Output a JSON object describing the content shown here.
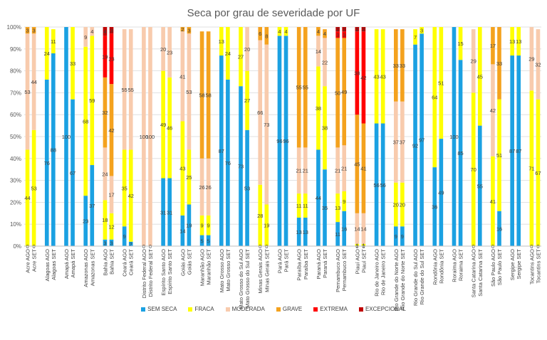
{
  "chart_data": {
    "type": "bar",
    "stacked": true,
    "title": "Seca por grau de severidade por UF",
    "ylim": [
      0,
      100
    ],
    "yticks": [
      "0%",
      "10%",
      "20%",
      "30%",
      "40%",
      "50%",
      "60%",
      "70%",
      "80%",
      "90%",
      "100%"
    ],
    "categories": [
      "Acre AGO",
      "Acre SET",
      "",
      "Alagoas AGO",
      "Alagoas SET",
      "",
      "Amapá AGO",
      "Amapá SET",
      "",
      "Amazonas AGO",
      "Amazonas SET",
      "",
      "Bahia AGO",
      "Bahia SET",
      "",
      "Ceará AGO",
      "Ceará SET",
      "",
      "Distrito Federal AGO",
      "Distrito Federal SET",
      "",
      "Espírito Santo AGO",
      "Espírito Santo SET",
      "",
      "Goiás AGO",
      "Goiás SET",
      "",
      "Maranhão AGO",
      "Maranhão SET",
      "",
      "Mato Grosso AGO",
      "Mato Grosso SET",
      "",
      "Mato Grosso do Sul AGO",
      "Mato Grosso do Sul SET",
      "",
      "Minas Gerais AGO",
      "Minas Gerais SET",
      "",
      "Pará AGO",
      "Pará SET",
      "",
      "Paraíba AGO",
      "Paraíba SET",
      "",
      "Paraná AGO",
      "Paraná SET",
      "",
      "Pernambuco AGO",
      "Pernambuco SET",
      "",
      "Piauí AGO",
      "Piauí SET",
      "",
      "Rio de Janeiro AGO",
      "Rio de Janeiro SET",
      "",
      "Rio Grande do Norte AGO",
      "Rio Grande do Norte SET",
      "",
      "Rio Grande do Sul AGO",
      "Rio Grande do Sul SET",
      "",
      "Rondônia AGO",
      "Rondônia SET",
      "",
      "Roraima AGO",
      "Roraima SET",
      "",
      "Santa Catarina AGO",
      "Santa Catarina SET",
      "",
      "São Paulo AGO",
      "São Paulo SET",
      "",
      "Sergipe AGO",
      "Sergipe SET",
      "",
      "Tocantins AGO",
      "Tocantins SET"
    ],
    "series": [
      {
        "name": "SEM SECA",
        "color": "#1ba1e2",
        "values": [
          0,
          0,
          null,
          76,
          88,
          null,
          100,
          67,
          null,
          23,
          37,
          null,
          3,
          3,
          null,
          9,
          2,
          null,
          0,
          0,
          null,
          31,
          31,
          null,
          14,
          19,
          null,
          5,
          5,
          null,
          87,
          76,
          null,
          73,
          53,
          null,
          0,
          0,
          null,
          96,
          96,
          null,
          13,
          13,
          null,
          44,
          35,
          null,
          11,
          16,
          null,
          0,
          0,
          null,
          56,
          56,
          null,
          9,
          9,
          null,
          92,
          97,
          null,
          36,
          49,
          null,
          100,
          85,
          null,
          0,
          55,
          null,
          0,
          16,
          null,
          87,
          87,
          null,
          0,
          0
        ]
      },
      {
        "name": "FRACA",
        "color": "#ffff00",
        "values": [
          44,
          53,
          null,
          24,
          11,
          null,
          0,
          33,
          null,
          68,
          59,
          null,
          18,
          12,
          null,
          35,
          42,
          null,
          0,
          0,
          null,
          49,
          46,
          null,
          43,
          25,
          null,
          9,
          9,
          null,
          13,
          24,
          null,
          27,
          27,
          null,
          28,
          19,
          null,
          4,
          4,
          null,
          11,
          11,
          null,
          38,
          38,
          null,
          13,
          9,
          null,
          1,
          1,
          null,
          43,
          43,
          null,
          20,
          20,
          null,
          7,
          3,
          null,
          64,
          51,
          null,
          0,
          15,
          null,
          70,
          45,
          null,
          41,
          51,
          null,
          13,
          13,
          null,
          71,
          67
        ]
      },
      {
        "name": "MODERADA",
        "color": "#f8cbad",
        "values": [
          53,
          44,
          null,
          0,
          0,
          null,
          0,
          0,
          null,
          9,
          4,
          null,
          24,
          17,
          null,
          55,
          55,
          null,
          100,
          100,
          null,
          20,
          23,
          null,
          41,
          53,
          null,
          26,
          26,
          null,
          0,
          0,
          null,
          0,
          20,
          null,
          66,
          73,
          null,
          0,
          0,
          null,
          21,
          21,
          null,
          14,
          22,
          null,
          21,
          21,
          null,
          14,
          14,
          null,
          0,
          0,
          null,
          37,
          37,
          null,
          0,
          0,
          null,
          0,
          0,
          null,
          0,
          0,
          null,
          29,
          0,
          null,
          42,
          0,
          null,
          0,
          0,
          null,
          29,
          32
        ]
      },
      {
        "name": "GRAVE",
        "color": "#f4a21e",
        "values": [
          3,
          3,
          null,
          0,
          0,
          null,
          0,
          0,
          null,
          0,
          0,
          null,
          32,
          42,
          null,
          0,
          0,
          null,
          0,
          0,
          null,
          0,
          0,
          null,
          2,
          3,
          null,
          58,
          58,
          null,
          0,
          0,
          null,
          0,
          0,
          null,
          6,
          8,
          null,
          0,
          0,
          null,
          55,
          55,
          null,
          4,
          4,
          null,
          50,
          49,
          null,
          45,
          41,
          null,
          0,
          0,
          null,
          33,
          33,
          null,
          0,
          0,
          null,
          0,
          0,
          null,
          0,
          0,
          null,
          0,
          0,
          null,
          17,
          33,
          null,
          0,
          0,
          null,
          0,
          0
        ]
      },
      {
        "name": "EXTREMA",
        "color": "#ff0000",
        "values": [
          0,
          0,
          null,
          0,
          0,
          null,
          0,
          0,
          null,
          0,
          0,
          null,
          19,
          23,
          null,
          0,
          0,
          null,
          0,
          0,
          null,
          0,
          0,
          null,
          0,
          0,
          null,
          0,
          0,
          null,
          0,
          0,
          null,
          0,
          0,
          null,
          0,
          0,
          null,
          0,
          0,
          null,
          0,
          0,
          null,
          0,
          0,
          null,
          3,
          3,
          null,
          38,
          42,
          null,
          0,
          0,
          null,
          0,
          0,
          null,
          0,
          0,
          null,
          0,
          0,
          null,
          0,
          0,
          null,
          0,
          0,
          null,
          0,
          0,
          null,
          0,
          0,
          null,
          0,
          0
        ]
      },
      {
        "name": "EXCEPCIONAL",
        "color": "#c00000",
        "values": [
          0,
          0,
          null,
          0,
          0,
          null,
          0,
          0,
          null,
          0,
          0,
          null,
          4,
          3,
          null,
          0,
          0,
          null,
          0,
          0,
          null,
          0,
          0,
          null,
          0,
          0,
          null,
          0,
          0,
          null,
          0,
          0,
          null,
          0,
          0,
          null,
          0,
          0,
          null,
          0,
          0,
          null,
          0,
          0,
          null,
          0,
          0,
          null,
          2,
          2,
          null,
          2,
          2,
          null,
          0,
          0,
          null,
          0,
          0,
          null,
          0,
          0,
          null,
          0,
          0,
          null,
          0,
          0,
          null,
          0,
          0,
          null,
          0,
          0,
          null,
          0,
          0,
          null,
          0,
          0
        ]
      }
    ],
    "legend_position": "bottom",
    "gridlines": true
  }
}
